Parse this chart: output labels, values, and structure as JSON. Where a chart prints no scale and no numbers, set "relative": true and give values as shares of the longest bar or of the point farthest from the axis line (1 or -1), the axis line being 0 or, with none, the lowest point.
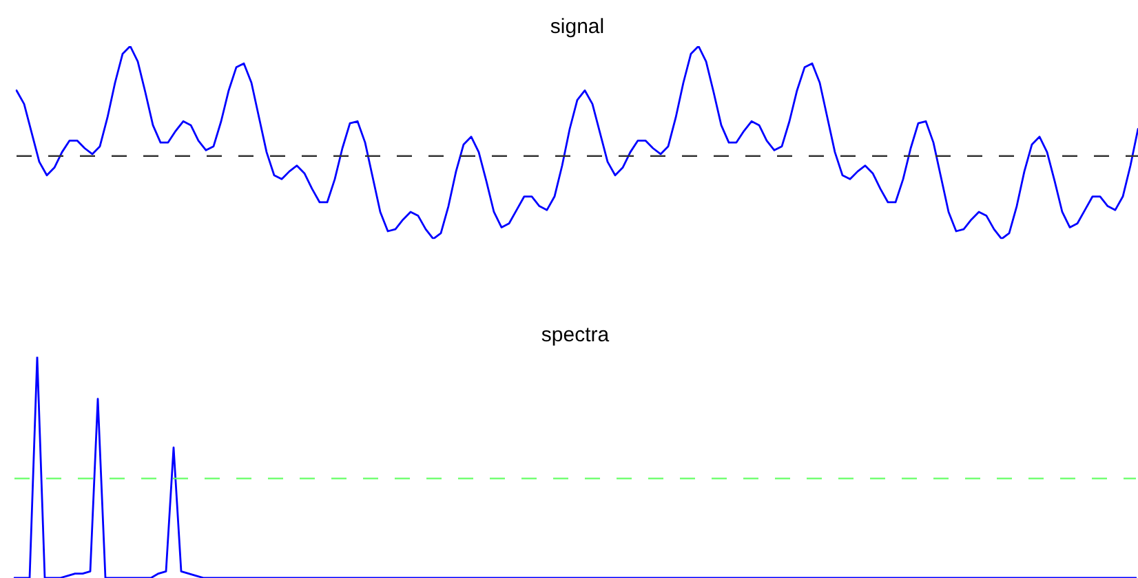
{
  "chart_data": [
    {
      "type": "line",
      "title": "signal",
      "relative": true,
      "categories": [
        null,
        null,
        null,
        null,
        null,
        null,
        null,
        null,
        null,
        null,
        null,
        null,
        null,
        null,
        null,
        null,
        null,
        null,
        null,
        null,
        null,
        null,
        null,
        null,
        null,
        null,
        null,
        null,
        null,
        null,
        null,
        null,
        null,
        null,
        null,
        null,
        null,
        null,
        null,
        null,
        null,
        null,
        null,
        null,
        null,
        null,
        null,
        null,
        null,
        null,
        null,
        null,
        null,
        null,
        null,
        null,
        null,
        null,
        null,
        null,
        null,
        null,
        null,
        null,
        null,
        null,
        null,
        null,
        null,
        null,
        null,
        null,
        null,
        null,
        null,
        null,
        null,
        null,
        null,
        null,
        null,
        null,
        null,
        null,
        null,
        null,
        null,
        null,
        null,
        null,
        null,
        null,
        null,
        null,
        null,
        null,
        null,
        null,
        null,
        null,
        null,
        null,
        null,
        null,
        null,
        null,
        null,
        null,
        null,
        null,
        null,
        null,
        null,
        null,
        null,
        null,
        null,
        null,
        null,
        null,
        null,
        null,
        null,
        null,
        null,
        null,
        null,
        null,
        null,
        null,
        null,
        null,
        null,
        null,
        null,
        null,
        null,
        null,
        null,
        null,
        null,
        null,
        null,
        null,
        null,
        null,
        null,
        null,
        null
      ],
      "series": [
        {
          "color": "#0000ff",
          "values": [
            0.77,
            0.7,
            0.55,
            0.4,
            0.33,
            0.37,
            0.45,
            0.51,
            0.51,
            0.47,
            0.44,
            0.48,
            0.63,
            0.81,
            0.96,
            1,
            0.92,
            0.76,
            0.59,
            0.5,
            0.5,
            0.56,
            0.61,
            0.59,
            0.51,
            0.46,
            0.48,
            0.61,
            0.77,
            0.89,
            0.91,
            0.81,
            0.63,
            0.45,
            0.33,
            0.31,
            0.35,
            0.38,
            0.34,
            0.26,
            0.19,
            0.19,
            0.31,
            0.47,
            0.6,
            0.61,
            0.5,
            0.32,
            0.14,
            0.04,
            0.05,
            0.1,
            0.14,
            0.12,
            0.05,
            0,
            0.03,
            0.17,
            0.35,
            0.49,
            0.53,
            0.45,
            0.3,
            0.14,
            0.06,
            0.08,
            0.15,
            0.22,
            0.22,
            0.17,
            0.15,
            0.22,
            0.38,
            0.57,
            0.72,
            0.77,
            0.7,
            0.55,
            0.4,
            0.33,
            0.37,
            0.45,
            0.51,
            0.51,
            0.47,
            0.44,
            0.48,
            0.63,
            0.81,
            0.96,
            1,
            0.92,
            0.76,
            0.59,
            0.5,
            0.5,
            0.56,
            0.61,
            0.59,
            0.51,
            0.46,
            0.48,
            0.61,
            0.77,
            0.89,
            0.91,
            0.81,
            0.63,
            0.45,
            0.33,
            0.31,
            0.35,
            0.38,
            0.34,
            0.26,
            0.19,
            0.19,
            0.31,
            0.47,
            0.6,
            0.61,
            0.5,
            0.32,
            0.14,
            0.04,
            0.05,
            0.1,
            0.14,
            0.12,
            0.05,
            0,
            0.03,
            0.17,
            0.35,
            0.49,
            0.53,
            0.45,
            0.3,
            0.14,
            0.06,
            0.08,
            0.15,
            0.22,
            0.22,
            0.17,
            0.15,
            0.22,
            0.38,
            0.57
          ]
        }
      ],
      "ref_lines": [
        {
          "axis": "y",
          "value": 0.43,
          "color": "#333333",
          "line_style": "dashed"
        }
      ]
    },
    {
      "type": "line",
      "title": "spectra",
      "relative": true,
      "categories": [
        null,
        null,
        null,
        null,
        null,
        null,
        null,
        null,
        null,
        null,
        null,
        null,
        null,
        null,
        null,
        null,
        null,
        null,
        null,
        null,
        null,
        null,
        null,
        null,
        null,
        null,
        null,
        null,
        null,
        null,
        null,
        null,
        null,
        null,
        null,
        null,
        null,
        null,
        null,
        null,
        null,
        null,
        null,
        null,
        null,
        null,
        null,
        null,
        null,
        null,
        null,
        null,
        null,
        null,
        null,
        null,
        null,
        null,
        null,
        null,
        null,
        null,
        null,
        null,
        null,
        null,
        null,
        null,
        null,
        null,
        null,
        null,
        null,
        null,
        null,
        null,
        null,
        null,
        null,
        null,
        null,
        null,
        null,
        null,
        null,
        null,
        null,
        null,
        null,
        null,
        null,
        null,
        null,
        null,
        null,
        null,
        null,
        null,
        null,
        null,
        null,
        null,
        null,
        null,
        null,
        null,
        null,
        null,
        null,
        null,
        null,
        null,
        null,
        null,
        null,
        null,
        null,
        null,
        null,
        null,
        null,
        null,
        null,
        null,
        null,
        null,
        null,
        null,
        null,
        null,
        null,
        null,
        null,
        null,
        null,
        null,
        null,
        null,
        null,
        null,
        null,
        null,
        null,
        null,
        null,
        null,
        null,
        null,
        null
      ],
      "series": [
        {
          "color": "#0000ff",
          "values": [
            0,
            0,
            0,
            1,
            0,
            0,
            0,
            0.01,
            0.02,
            0.02,
            0.03,
            0.81,
            0,
            0,
            0,
            0,
            0,
            0,
            0,
            0.02,
            0.03,
            0.59,
            0.03,
            0.02,
            0.01,
            0,
            0,
            0,
            0,
            0,
            0,
            0,
            0,
            0,
            0,
            0,
            0,
            0,
            0,
            0,
            0,
            0,
            0,
            0,
            0,
            0,
            0,
            0,
            0,
            0,
            0,
            0,
            0,
            0,
            0,
            0,
            0,
            0,
            0,
            0,
            0,
            0,
            0,
            0,
            0,
            0,
            0,
            0,
            0,
            0,
            0,
            0,
            0,
            0,
            0,
            0,
            0,
            0,
            0,
            0,
            0,
            0,
            0,
            0,
            0,
            0,
            0,
            0,
            0,
            0,
            0,
            0,
            0,
            0,
            0,
            0,
            0,
            0,
            0,
            0,
            0,
            0,
            0,
            0,
            0,
            0,
            0,
            0,
            0,
            0,
            0,
            0,
            0,
            0,
            0,
            0,
            0,
            0,
            0,
            0,
            0,
            0,
            0,
            0,
            0,
            0,
            0,
            0,
            0,
            0,
            0,
            0,
            0,
            0,
            0,
            0,
            0,
            0,
            0,
            0,
            0,
            0,
            0,
            0,
            0,
            0,
            0,
            0,
            0
          ]
        }
      ],
      "ref_lines": [
        {
          "axis": "y",
          "value": 0.45,
          "color": "#66ff66",
          "line_style": "dashed"
        }
      ]
    }
  ]
}
